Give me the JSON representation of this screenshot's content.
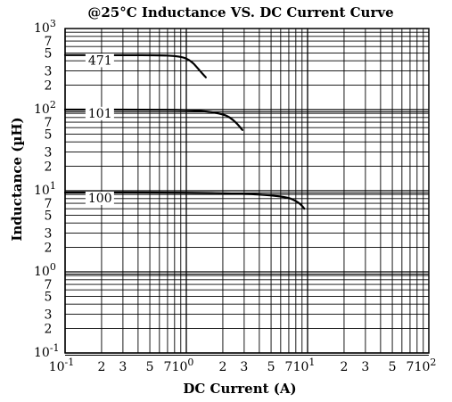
{
  "chart_data": {
    "type": "line",
    "title": "@25°C Inductance VS. DC Current Curve",
    "xlabel": "DC Current (A)",
    "ylabel": "Inductance (µH)",
    "x_scale": "log",
    "y_scale": "log",
    "xlim": [
      0.1,
      100
    ],
    "ylim": [
      0.1,
      1000
    ],
    "grid": true,
    "x_major_ticks": [
      {
        "value": 0.1,
        "base": "10",
        "exp": "-1"
      },
      {
        "value": 1,
        "base": "10",
        "exp": "0"
      },
      {
        "value": 10,
        "base": "10",
        "exp": "1"
      },
      {
        "value": 100,
        "base": "10",
        "exp": "2"
      }
    ],
    "y_major_ticks": [
      {
        "value": 0.1,
        "base": "10",
        "exp": "-1"
      },
      {
        "value": 1,
        "base": "10",
        "exp": "0"
      },
      {
        "value": 10,
        "base": "10",
        "exp": "1"
      },
      {
        "value": 100,
        "base": "10",
        "exp": "2"
      },
      {
        "value": 1000,
        "base": "10",
        "exp": "3"
      }
    ],
    "minor_tick_labels": [
      "2",
      "3",
      "5",
      "7"
    ],
    "series": [
      {
        "name": "471",
        "x": [
          0.1,
          0.3,
          0.6,
          0.8,
          0.95,
          1.05,
          1.15,
          1.25,
          1.35,
          1.45
        ],
        "y": [
          470,
          470,
          468,
          460,
          440,
          410,
          370,
          320,
          280,
          250
        ]
      },
      {
        "name": "101",
        "x": [
          0.1,
          0.5,
          1.0,
          1.5,
          2.0,
          2.3,
          2.55,
          2.75,
          2.9
        ],
        "y": [
          100,
          100,
          99,
          95,
          88,
          80,
          70,
          62,
          56
        ]
      },
      {
        "name": "100",
        "x": [
          0.1,
          1,
          3,
          5,
          7,
          8,
          8.8,
          9.4
        ],
        "y": [
          9.5,
          9.5,
          9.2,
          8.8,
          8.2,
          7.5,
          6.8,
          6.0
        ]
      }
    ],
    "series_label_anchor": [
      {
        "x": 0.155,
        "y": 360
      },
      {
        "x": 0.155,
        "y": 80
      },
      {
        "x": 0.155,
        "y": 7.2
      }
    ]
  }
}
